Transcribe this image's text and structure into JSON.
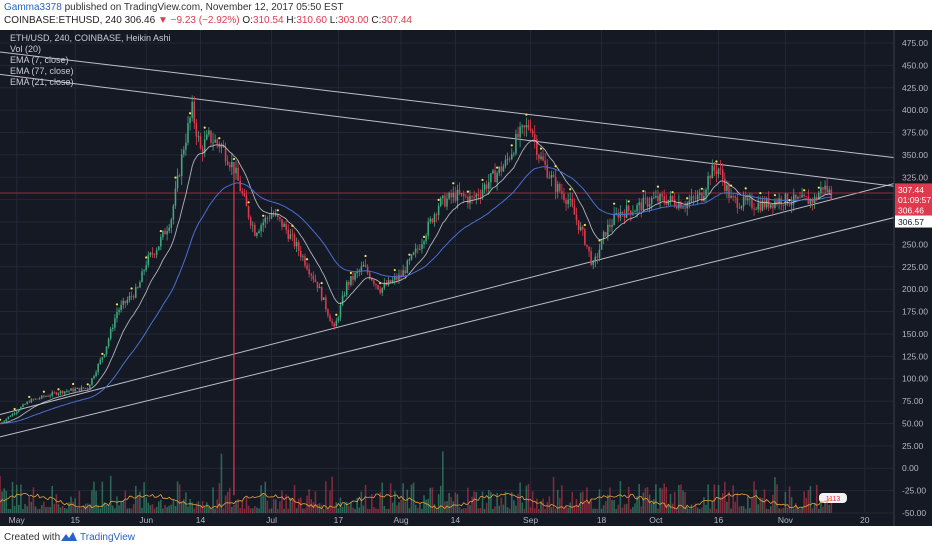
{
  "header": {
    "author": "Gamma3378",
    "published": "published on TradingView.com, November 12, 2017 05:50 EST",
    "symbol": "COINBASE:ETHUSD, 240",
    "last": "306.46",
    "arrow": "▼",
    "change": "−9.23 (−2.92%)",
    "o_label": "O:",
    "o_val": "310.54",
    "h_label": "H:",
    "h_val": "310.60",
    "l_label": "L:",
    "l_val": "303.00",
    "c_label": "C:",
    "c_val": "307.44"
  },
  "legend": {
    "main": "ETH/USD, 240, COINBASE, Heikin Ashi",
    "vol": "Vol (20)",
    "ema7": "EMA (7, close)",
    "ema77": "EMA (77, close)",
    "ema21": "EMA (21, close)"
  },
  "price_tags": {
    "p1": "307.44",
    "countdown": "01:09:57",
    "p2": "306.46",
    "p3": "306.57"
  },
  "vol_badge": "1113",
  "footer": {
    "created": "Created with",
    "brand": "TradingView"
  },
  "colors": {
    "bg": "#151924",
    "up": "#3fa87f",
    "down": "#e0394e",
    "ema_fast": "#d7d9de",
    "ema_mid": "#4a6fd1",
    "vol_ma": "#e8a23c",
    "trend": "#cfd2d9",
    "red_line": "#e0394e",
    "brand": "#2962c9"
  },
  "chart_data": {
    "type": "candlestick",
    "title": "ETH/USD, 240, COINBASE, Heikin Ashi",
    "x_ticks": [
      "May",
      "15",
      "Jun",
      "14",
      "Jul",
      "17",
      "Aug",
      "14",
      "Sep",
      "18",
      "Oct",
      "16",
      "Nov",
      "20"
    ],
    "y_ticks": [
      "475.00",
      "450.00",
      "425.00",
      "400.00",
      "375.00",
      "350.00",
      "325.00",
      "300.00",
      "275.00",
      "250.00",
      "225.00",
      "200.00",
      "175.00",
      "150.00",
      "125.00",
      "100.00",
      "75.00",
      "50.00",
      "25.00",
      "0.00",
      "-25.00",
      "-50.00"
    ],
    "ylim": [
      -60,
      490
    ],
    "x_range": [
      "2017-04-27",
      "2017-11-27"
    ],
    "price_path": [
      [
        "2017-04-27",
        50
      ],
      [
        "2017-05-04",
        75
      ],
      [
        "2017-05-11",
        85
      ],
      [
        "2017-05-18",
        90
      ],
      [
        "2017-05-22",
        130
      ],
      [
        "2017-05-25",
        175
      ],
      [
        "2017-05-30",
        200
      ],
      [
        "2017-06-01",
        230
      ],
      [
        "2017-06-04",
        250
      ],
      [
        "2017-06-07",
        280
      ],
      [
        "2017-06-10",
        360
      ],
      [
        "2017-06-12",
        400
      ],
      [
        "2017-06-14",
        355
      ],
      [
        "2017-06-16",
        370
      ],
      [
        "2017-06-19",
        360
      ],
      [
        "2017-06-22",
        335
      ],
      [
        "2017-06-25",
        290
      ],
      [
        "2017-06-27",
        265
      ],
      [
        "2017-07-01",
        285
      ],
      [
        "2017-07-04",
        270
      ],
      [
        "2017-07-08",
        240
      ],
      [
        "2017-07-12",
        205
      ],
      [
        "2017-07-16",
        155
      ],
      [
        "2017-07-19",
        205
      ],
      [
        "2017-07-23",
        225
      ],
      [
        "2017-07-27",
        200
      ],
      [
        "2017-08-01",
        215
      ],
      [
        "2017-08-05",
        245
      ],
      [
        "2017-08-10",
        295
      ],
      [
        "2017-08-14",
        305
      ],
      [
        "2017-08-18",
        300
      ],
      [
        "2017-08-22",
        320
      ],
      [
        "2017-08-26",
        340
      ],
      [
        "2017-08-29",
        370
      ],
      [
        "2017-09-01",
        385
      ],
      [
        "2017-09-03",
        350
      ],
      [
        "2017-09-07",
        315
      ],
      [
        "2017-09-10",
        300
      ],
      [
        "2017-09-14",
        255
      ],
      [
        "2017-09-16",
        225
      ],
      [
        "2017-09-19",
        265
      ],
      [
        "2017-09-22",
        285
      ],
      [
        "2017-09-26",
        290
      ],
      [
        "2017-09-30",
        300
      ],
      [
        "2017-10-04",
        300
      ],
      [
        "2017-10-08",
        295
      ],
      [
        "2017-10-12",
        305
      ],
      [
        "2017-10-14",
        330
      ],
      [
        "2017-10-16",
        335
      ],
      [
        "2017-10-19",
        300
      ],
      [
        "2017-10-23",
        295
      ],
      [
        "2017-10-27",
        295
      ],
      [
        "2017-10-31",
        300
      ],
      [
        "2017-11-04",
        298
      ],
      [
        "2017-11-08",
        300
      ],
      [
        "2017-11-10",
        315
      ],
      [
        "2017-11-12",
        306
      ]
    ],
    "trendlines": [
      {
        "from": [
          "2017-04-27",
          465
        ],
        "to": [
          "2017-11-27",
          347
        ]
      },
      {
        "from": [
          "2017-04-27",
          440
        ],
        "to": [
          "2017-11-27",
          315
        ]
      },
      {
        "from": [
          "2017-04-27",
          60
        ],
        "to": [
          "2017-11-27",
          318
        ]
      },
      {
        "from": [
          "2017-04-27",
          35
        ],
        "to": [
          "2017-11-27",
          280
        ]
      }
    ],
    "last_price": 307.44
  }
}
